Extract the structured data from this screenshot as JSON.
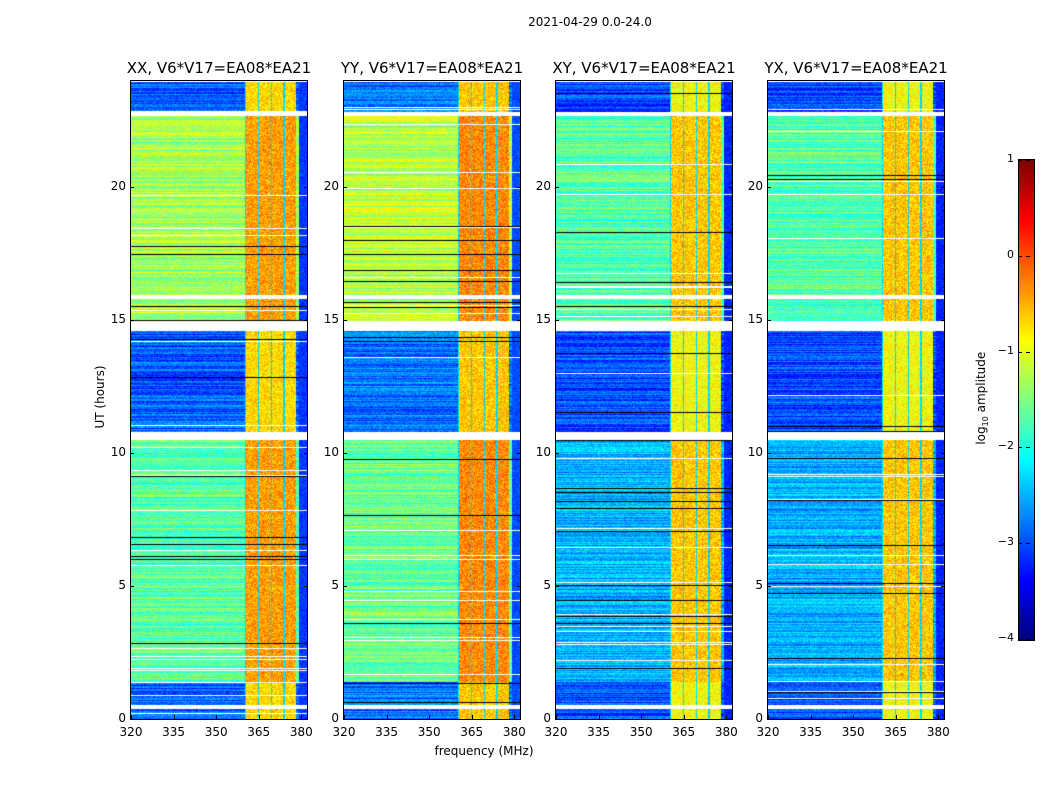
{
  "chart_data": {
    "type": "heatmap",
    "title": "2021-04-29 0.0-24.0",
    "xlabel": "frequency (MHz)",
    "ylabel": "UT (hours)",
    "xlim": [
      320,
      382
    ],
    "ylim": [
      0,
      24
    ],
    "xticks": [
      "320",
      "335",
      "350",
      "365",
      "380"
    ],
    "xtick_values": [
      320,
      335,
      350,
      365,
      380
    ],
    "yticks": [
      "0",
      "5",
      "10",
      "15",
      "20"
    ],
    "ytick_values": [
      0,
      5,
      10,
      15,
      20
    ],
    "panels": [
      {
        "title": "XX, V6*V17=EA08*EA21",
        "pol": "XX",
        "day_level": -1.3,
        "night_level": -2.9,
        "evening_level": -1.7,
        "rfi_level": -0.4
      },
      {
        "title": "YY, V6*V17=EA08*EA21",
        "pol": "YY",
        "day_level": -1.2,
        "night_level": -2.8,
        "evening_level": -1.6,
        "rfi_level": -0.3
      },
      {
        "title": "XY, V6*V17=EA08*EA21",
        "pol": "XY",
        "day_level": -1.7,
        "night_level": -3.0,
        "evening_level": -2.5,
        "rfi_level": -0.6
      },
      {
        "title": "YX, V6*V17=EA08*EA21",
        "pol": "YX",
        "day_level": -1.7,
        "night_level": -3.0,
        "evening_level": -2.5,
        "rfi_level": -0.6
      }
    ],
    "rfi_band_mhz": [
      360,
      378
    ],
    "flagged_time_ranges_hours": [
      [
        14.6,
        15.0
      ],
      [
        10.5,
        10.8
      ],
      [
        15.8,
        15.95
      ],
      [
        22.7,
        22.85
      ],
      [
        0.4,
        0.55
      ]
    ],
    "time_segments_hours": [
      {
        "from": 0.0,
        "to": 1.4,
        "state": "night"
      },
      {
        "from": 1.4,
        "to": 10.5,
        "state": "evening"
      },
      {
        "from": 10.8,
        "to": 14.6,
        "state": "night"
      },
      {
        "from": 15.0,
        "to": 15.8,
        "state": "day"
      },
      {
        "from": 15.95,
        "to": 22.7,
        "state": "day"
      },
      {
        "from": 22.85,
        "to": 24.0,
        "state": "night"
      }
    ],
    "colorbar": {
      "label": "log10 amplitude",
      "label_main": "log",
      "label_sub": "10",
      "label_rest": " amplitude",
      "range": [
        -4,
        1
      ],
      "ticks": [
        "1",
        "0",
        "−1",
        "−2",
        "−3",
        "−4"
      ],
      "tick_values": [
        1,
        0,
        -1,
        -2,
        -3,
        -4
      ],
      "colormap": "jet"
    },
    "grid": false
  }
}
